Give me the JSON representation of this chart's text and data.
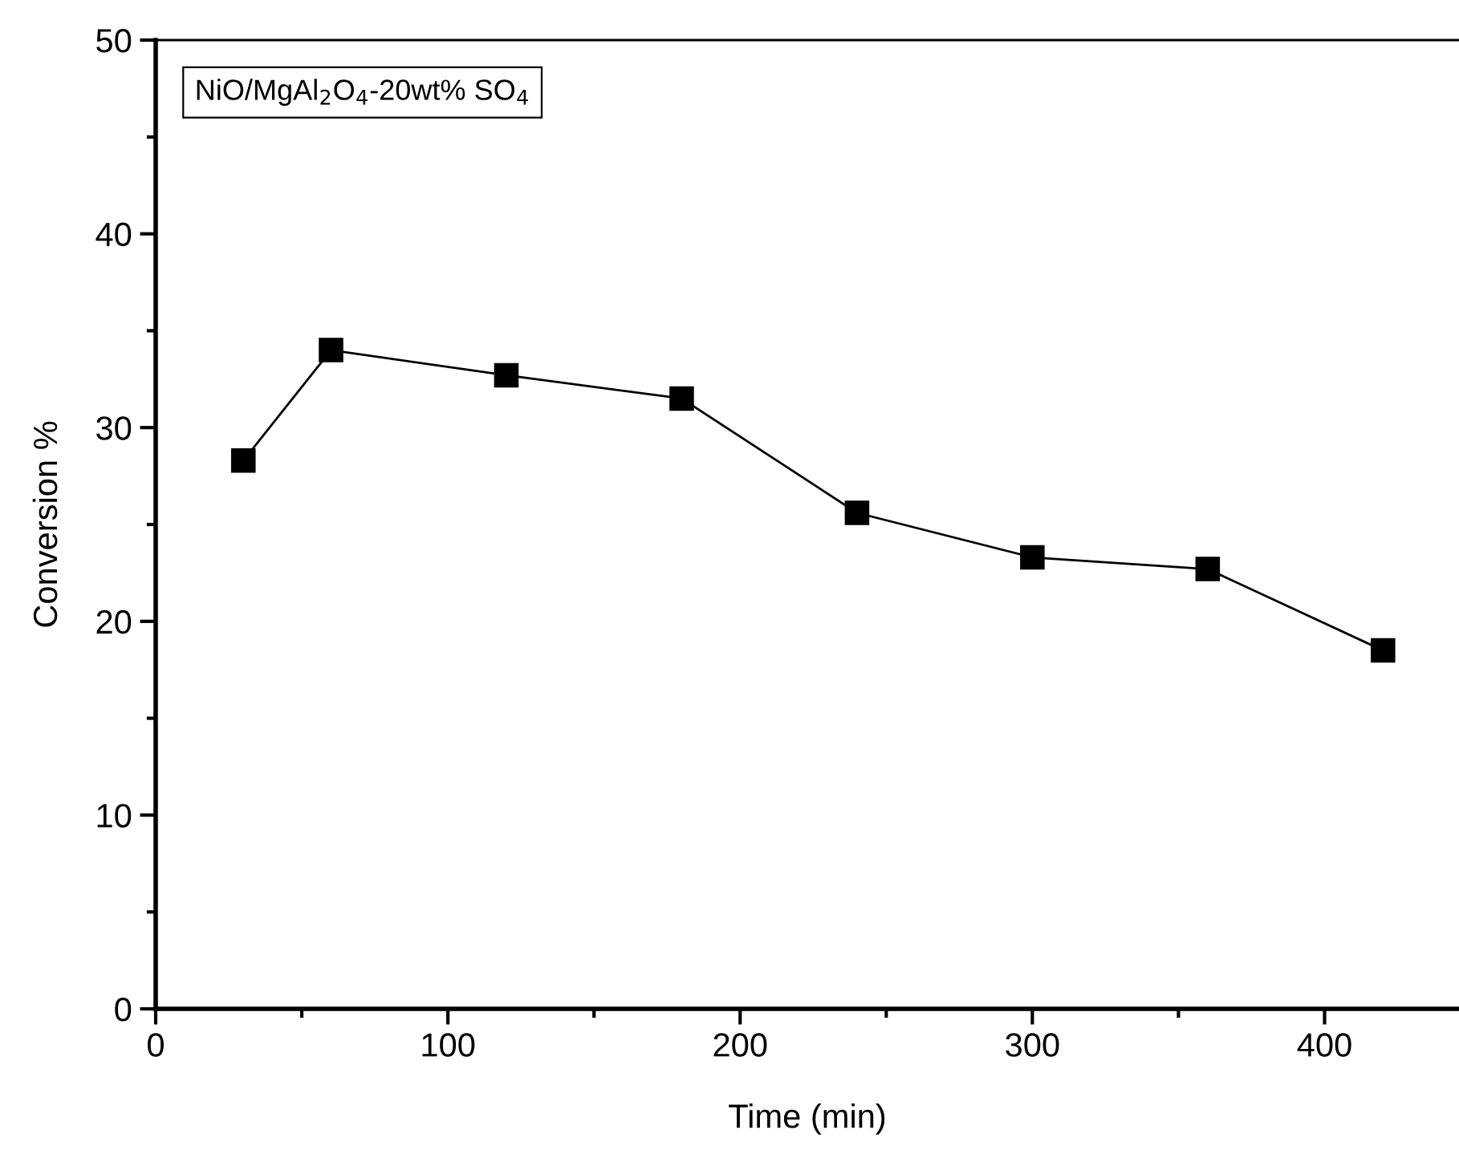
{
  "chart_data": {
    "type": "line",
    "xlabel": "Time (min)",
    "ylabel": "Conversion %",
    "annotations": [
      "NiO/MgAl$_{2}$O$_{4}$-20wt% SO$_{4}$"
    ],
    "x": [
      30,
      60,
      120,
      180,
      240,
      300,
      360,
      420
    ],
    "series": [
      {
        "color": "#000000",
        "values": [
          28.3,
          34.0,
          32.7,
          31.5,
          25.6,
          23.3,
          22.7,
          18.5
        ]
      }
    ],
    "xlim": [
      0,
      446
    ],
    "xticks": [
      0,
      100,
      200,
      300,
      400
    ],
    "ylim": [
      0,
      50
    ],
    "yticks": [
      0,
      10,
      20,
      30,
      40,
      50
    ],
    "marker": "square",
    "line_style": "solid",
    "grid": false,
    "legend": false
  }
}
